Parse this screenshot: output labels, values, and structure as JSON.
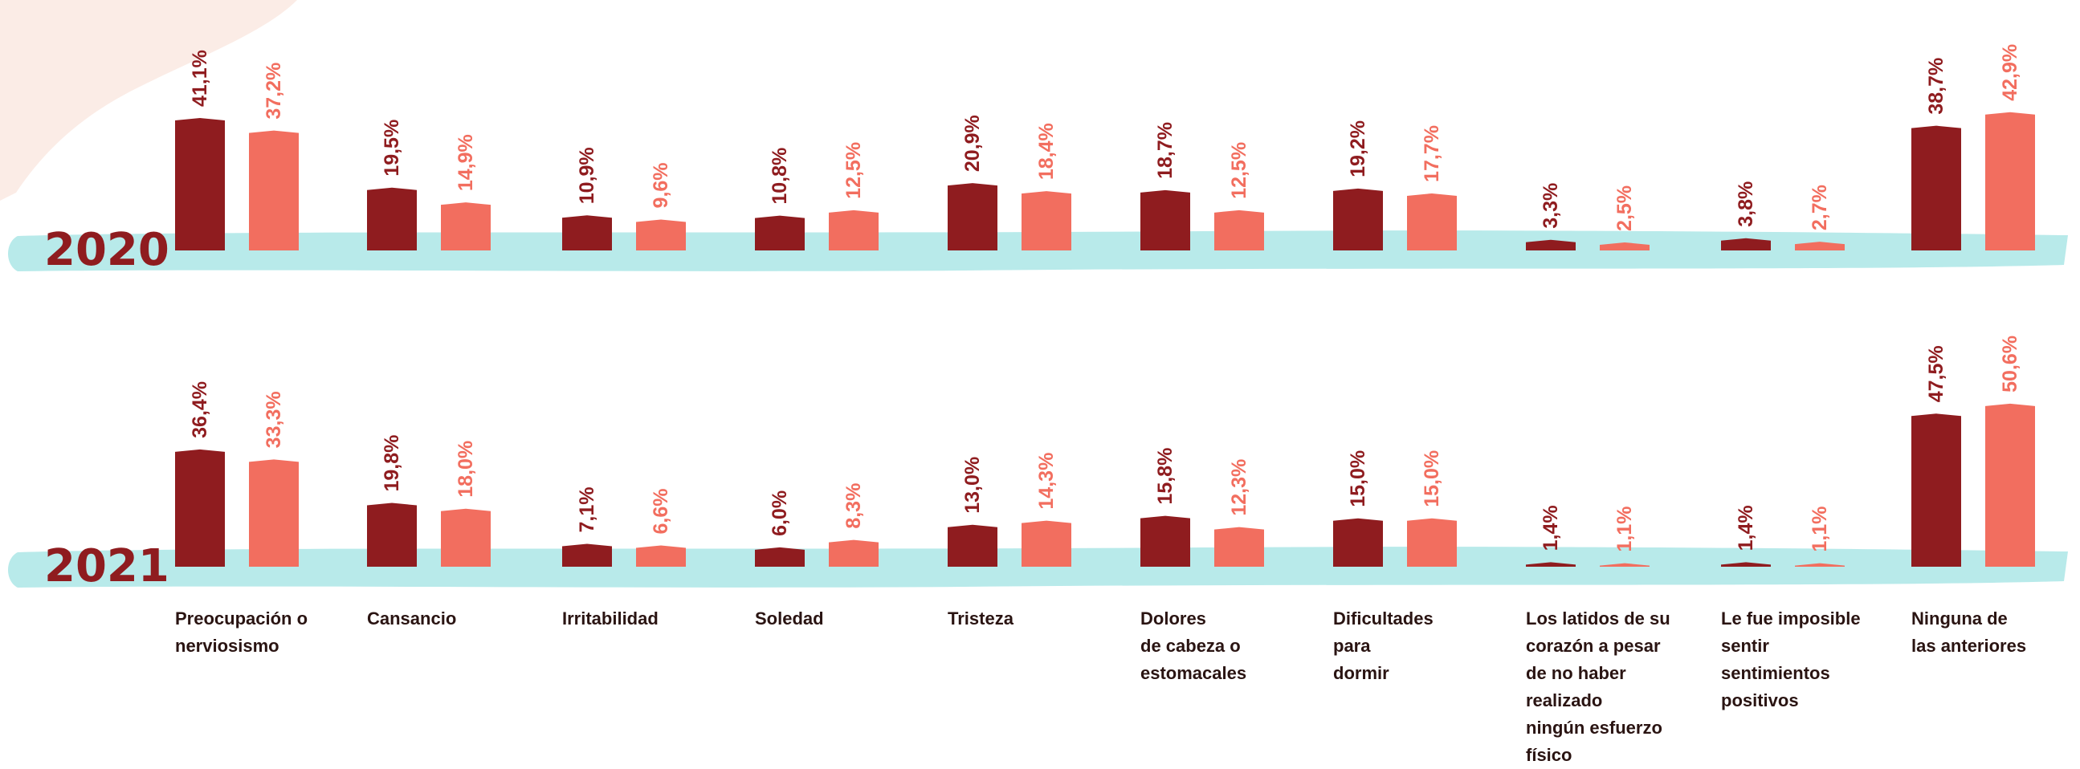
{
  "chart_data": {
    "type": "bar",
    "categories": [
      "Preocupación o\nnerviosismo",
      "Cansancio",
      "Irritabilidad",
      "Soledad",
      "Tristeza",
      "Dolores\nde cabeza o\nestomacales",
      "Dificultades\npara\ndormir",
      "Los latidos de su\ncorazón a pesar\nde no haber\nrealizado\nningún esfuerzo\nfísico",
      "Le fue imposible\nsentir\nsentimientos\npositivos",
      "Ninguna de\nlas anteriores"
    ],
    "panels": [
      {
        "year": "2020",
        "series": [
          {
            "values": [
              41.1,
              19.5,
              10.9,
              10.8,
              20.9,
              18.7,
              19.2,
              3.3,
              3.8,
              38.7
            ],
            "labels": [
              "41,1%",
              "19,5%",
              "10,9%",
              "10,8%",
              "20,9%",
              "18,7%",
              "19,2%",
              "3,3%",
              "3,8%",
              "38,7%"
            ]
          },
          {
            "values": [
              37.2,
              14.9,
              9.6,
              12.5,
              18.4,
              12.5,
              17.7,
              2.5,
              2.7,
              42.9
            ],
            "labels": [
              "37,2%",
              "14,9%",
              "9,6%",
              "12,5%",
              "18,4%",
              "12,5%",
              "17,7%",
              "2,5%",
              "2,7%",
              "42,9%"
            ]
          }
        ]
      },
      {
        "year": "2021",
        "series": [
          {
            "values": [
              36.4,
              19.8,
              7.1,
              6.0,
              13.0,
              15.8,
              15.0,
              1.4,
              1.4,
              47.5
            ],
            "labels": [
              "36,4%",
              "19,8%",
              "7,1%",
              "6,0%",
              "13,0%",
              "15,8%",
              "15,0%",
              "1,4%",
              "1,4%",
              "47,5%"
            ]
          },
          {
            "values": [
              33.3,
              18.0,
              6.6,
              8.3,
              14.3,
              12.3,
              15.0,
              1.1,
              1.1,
              50.6
            ],
            "labels": [
              "33,3%",
              "18,0%",
              "6,6%",
              "8,3%",
              "14,3%",
              "12,3%",
              "15,0%",
              "1,1%",
              "1,1%",
              "50,6%"
            ]
          }
        ]
      }
    ],
    "ylim": [
      0,
      55
    ],
    "title": "",
    "xlabel": "",
    "ylabel": "",
    "grid": false,
    "colors": {
      "series_1": "#8f1c1f",
      "series_2": "#f26e5f",
      "baseline": "#b8eaea",
      "corner_blob": "#fbece6",
      "year_text": "#8f1c1f",
      "category_text": "#2a1412"
    }
  }
}
